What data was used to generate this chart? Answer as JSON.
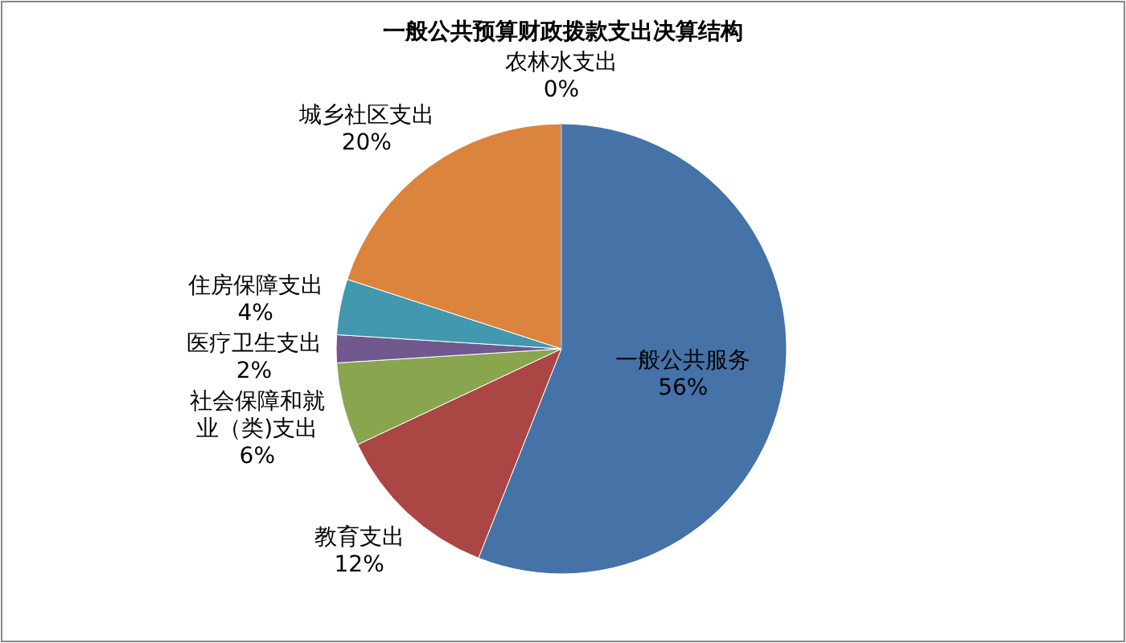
{
  "chart_data": {
    "type": "pie",
    "title": "一般公共预算财政拨款支出决算结构",
    "categories": [
      "一般公共服务",
      "教育支出",
      "社会保障和就业（类)支出",
      "医疗卫生支出",
      "住房保障支出",
      "城乡社区支出",
      "农林水支出"
    ],
    "values": [
      56,
      12,
      6,
      2,
      4,
      20,
      0
    ],
    "value_labels": [
      "56%",
      "12%",
      "6%",
      "2%",
      "4%",
      "20%",
      "0%"
    ],
    "colors": [
      "#4572a7",
      "#aa4643",
      "#89a54e",
      "#71588f",
      "#4198af",
      "#db843d",
      "#93a9cf"
    ]
  }
}
